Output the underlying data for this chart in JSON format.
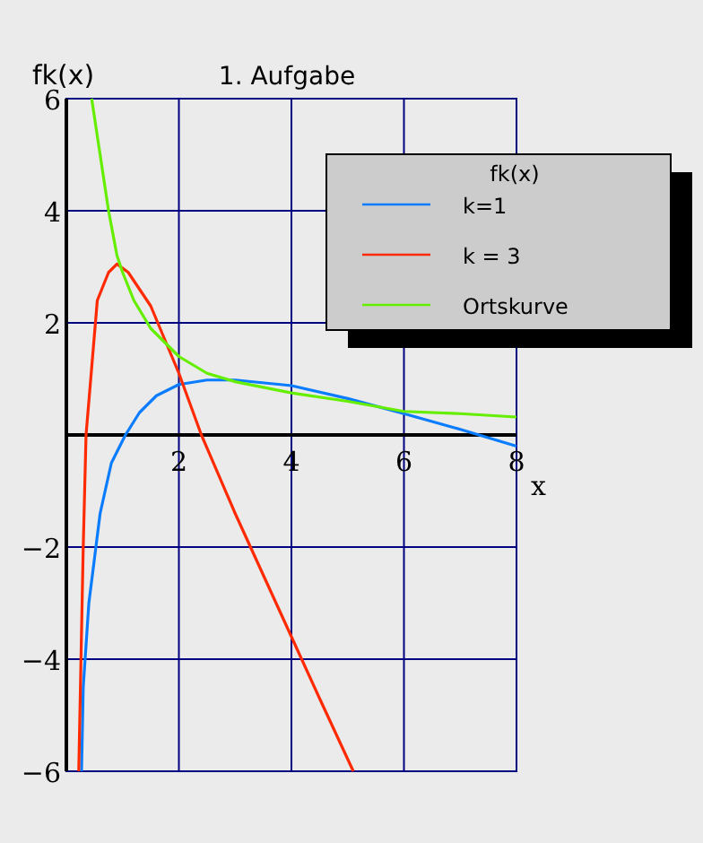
{
  "chart_data": {
    "type": "line",
    "title": "1. Aufgabe",
    "xlabel": "x",
    "ylabel": "fk(x)",
    "legend_title": "fk(x)",
    "legend": "top right",
    "grid": true,
    "marker": "none",
    "line_style": "solid",
    "xlim": [
      0,
      8
    ],
    "ylim": [
      -6,
      6
    ],
    "xticks": [
      2,
      4,
      6,
      8
    ],
    "yticks": [
      -6,
      -4,
      -2,
      2,
      4,
      6
    ],
    "series": [
      {
        "name": "k=1",
        "color": "#0a7cff",
        "x": [
          0.27,
          0.3,
          0.4,
          0.6,
          0.8,
          1.05,
          1.3,
          1.6,
          2,
          2.5,
          3,
          4,
          5,
          6,
          7,
          8
        ],
        "values": [
          -6,
          -4.5,
          -3,
          -1.4,
          -0.5,
          0,
          0.4,
          0.7,
          0.9,
          0.98,
          0.98,
          0.88,
          0.65,
          0.38,
          0.1,
          -0.2
        ]
      },
      {
        "name": "k = 3",
        "color": "#ff2a00",
        "x": [
          0.22,
          0.3,
          0.35,
          0.45,
          0.55,
          0.75,
          0.9,
          1.1,
          1.5,
          2,
          2.4,
          3,
          3.5,
          4,
          4.5,
          5.1
        ],
        "values": [
          -6,
          -2,
          0,
          1.2,
          2.4,
          2.9,
          3.05,
          2.9,
          2.3,
          1.1,
          0,
          -1.4,
          -2.5,
          -3.6,
          -4.7,
          -6
        ]
      },
      {
        "name": "Ortskurve",
        "color": "#66ee00",
        "x": [
          0.45,
          0.6,
          0.75,
          0.9,
          1,
          1.2,
          1.5,
          2,
          2.5,
          3,
          4,
          5,
          6,
          7,
          8
        ],
        "values": [
          6,
          5,
          4,
          3.2,
          2.9,
          2.4,
          1.9,
          1.4,
          1.1,
          0.95,
          0.75,
          0.6,
          0.42,
          0.38,
          0.32
        ]
      }
    ]
  }
}
